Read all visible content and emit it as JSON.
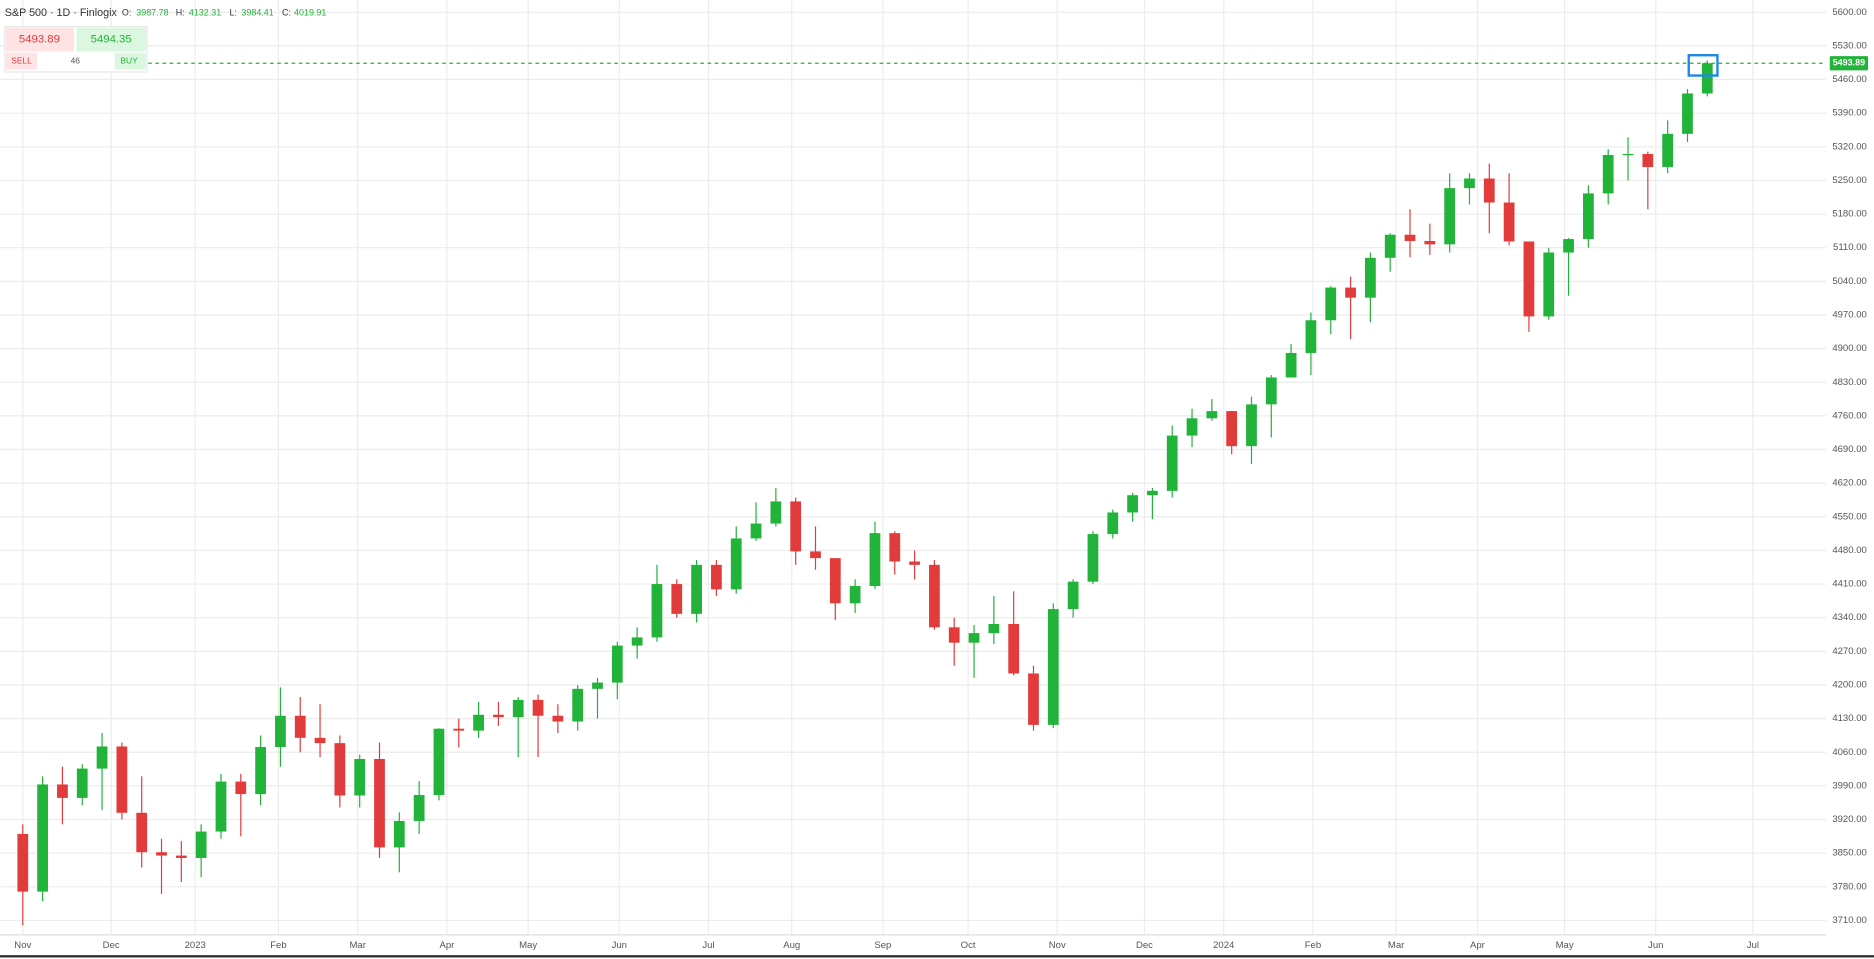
{
  "header": {
    "title": "S&P 500 · 1D · Finlogix",
    "o_label": "O:",
    "o": "3987.78",
    "h_label": "H:",
    "h": "4132.31",
    "l_label": "L:",
    "l": "3984.41",
    "c_label": "C:",
    "c": "4019.91"
  },
  "trade_panel": {
    "sell_price": "5493.89",
    "buy_price": "5494.35",
    "sell": "SELL",
    "spread": "46",
    "buy": "BUY"
  },
  "chart_data": {
    "type": "candlestick",
    "up_color": "#22b33a",
    "down_color": "#e23b3b",
    "grid": true,
    "current_price": 5493.89,
    "open": [
      3890,
      3770,
      3993,
      3965,
      4026,
      4072,
      3934,
      3852,
      3845,
      3840,
      3895,
      3999,
      3973,
      4071,
      4136,
      4090,
      4079,
      3970,
      4046,
      3862,
      3917,
      3971,
      4109,
      4105,
      4138,
      4133,
      4169,
      4136,
      4124,
      4192,
      4205,
      4282,
      4299,
      4410,
      4348,
      4450,
      4399,
      4505,
      4536,
      4582,
      4478,
      4464,
      4370,
      4406,
      4516,
      4457,
      4450,
      4320,
      4288,
      4308,
      4327,
      4224,
      4117,
      4358,
      4415,
      4514,
      4559,
      4595,
      4604,
      4719,
      4755,
      4770,
      4697,
      4784,
      4840,
      4891,
      4959,
      5027,
      5006,
      5089,
      5137,
      5124,
      5117,
      5234,
      5254,
      5204,
      5123,
      4967,
      5100,
      5128,
      5223,
      5303,
      5305,
      5278,
      5347,
      5431
    ],
    "high": [
      3910,
      4010,
      4030,
      4035,
      4100,
      4080,
      4010,
      3880,
      3875,
      3910,
      4015,
      4015,
      4095,
      4195,
      4175,
      4160,
      4095,
      4055,
      4080,
      3935,
      4000,
      4110,
      4130,
      4165,
      4165,
      4175,
      4180,
      4160,
      4200,
      4215,
      4290,
      4320,
      4450,
      4420,
      4460,
      4460,
      4530,
      4580,
      4610,
      4590,
      4530,
      4460,
      4420,
      4540,
      4520,
      4480,
      4460,
      4340,
      4325,
      4385,
      4395,
      4240,
      4370,
      4420,
      4520,
      4565,
      4600,
      4610,
      4740,
      4775,
      4795,
      4770,
      4800,
      4845,
      4910,
      4975,
      5030,
      5050,
      5100,
      5140,
      5190,
      5160,
      5265,
      5265,
      5285,
      5265,
      5120,
      5110,
      5130,
      5240,
      5315,
      5340,
      5310,
      5375,
      5440,
      5500
    ],
    "low": [
      3700,
      3750,
      3910,
      3950,
      3940,
      3920,
      3820,
      3765,
      3790,
      3800,
      3880,
      3885,
      3950,
      4030,
      4060,
      4050,
      3945,
      3945,
      3840,
      3810,
      3890,
      3960,
      4070,
      4090,
      4115,
      4050,
      4050,
      4100,
      4105,
      4130,
      4170,
      4255,
      4290,
      4340,
      4330,
      4385,
      4390,
      4500,
      4530,
      4450,
      4440,
      4335,
      4350,
      4400,
      4430,
      4420,
      4315,
      4240,
      4215,
      4285,
      4220,
      4105,
      4110,
      4340,
      4410,
      4505,
      4540,
      4545,
      4590,
      4695,
      4750,
      4680,
      4660,
      4715,
      4840,
      4845,
      4930,
      4920,
      4955,
      5060,
      5090,
      5095,
      5100,
      5200,
      5140,
      5115,
      4935,
      4960,
      5010,
      5110,
      5200,
      5250,
      5190,
      5265,
      5330,
      5425
    ],
    "close": [
      3770,
      3993,
      3965,
      4026,
      4072,
      3934,
      3852,
      3845,
      3840,
      3895,
      3999,
      3973,
      4071,
      4136,
      4090,
      4079,
      3970,
      4046,
      3862,
      3917,
      3971,
      4109,
      4105,
      4138,
      4133,
      4169,
      4136,
      4124,
      4192,
      4205,
      4282,
      4299,
      4410,
      4348,
      4450,
      4399,
      4505,
      4536,
      4582,
      4478,
      4464,
      4370,
      4406,
      4516,
      4457,
      4450,
      4320,
      4288,
      4308,
      4327,
      4224,
      4117,
      4358,
      4415,
      4514,
      4559,
      4595,
      4604,
      4719,
      4755,
      4770,
      4697,
      4784,
      4840,
      4891,
      4959,
      5027,
      5006,
      5089,
      5137,
      5124,
      5117,
      5234,
      5254,
      5204,
      5123,
      4967,
      5100,
      5128,
      5223,
      5303,
      5305,
      5278,
      5347,
      5431,
      5494
    ],
    "xlim": [
      -1.15,
      91
    ],
    "xticks": [
      {
        "value": 0,
        "label": "Nov"
      },
      {
        "value": 4.46,
        "label": "Dec"
      },
      {
        "value": 8.7,
        "label": "2023"
      },
      {
        "value": 12.9,
        "label": "Feb"
      },
      {
        "value": 16.9,
        "label": "Mar"
      },
      {
        "value": 21.4,
        "label": "Apr"
      },
      {
        "value": 25.5,
        "label": "May"
      },
      {
        "value": 30.1,
        "label": "Jun"
      },
      {
        "value": 34.6,
        "label": "Jul"
      },
      {
        "value": 38.8,
        "label": "Aug"
      },
      {
        "value": 43.4,
        "label": "Sep"
      },
      {
        "value": 47.7,
        "label": "Oct"
      },
      {
        "value": 52.2,
        "label": "Nov"
      },
      {
        "value": 56.6,
        "label": "Dec"
      },
      {
        "value": 60.6,
        "label": "2024"
      },
      {
        "value": 65.1,
        "label": "Feb"
      },
      {
        "value": 69.3,
        "label": "Mar"
      },
      {
        "value": 73.4,
        "label": "Apr"
      },
      {
        "value": 77.8,
        "label": "May"
      },
      {
        "value": 82.4,
        "label": "Jun"
      },
      {
        "value": 87.3,
        "label": "Jul"
      }
    ],
    "ylim": [
      3680,
      5625
    ],
    "yticks": [
      {
        "value": 5600,
        "label": "5600.00"
      },
      {
        "value": 5530,
        "label": "5530.00"
      },
      {
        "value": 5460,
        "label": "5460.00"
      },
      {
        "value": 5390,
        "label": "5390.00"
      },
      {
        "value": 5320,
        "label": "5320.00"
      },
      {
        "value": 5250,
        "label": "5250.00"
      },
      {
        "value": 5180,
        "label": "5180.00"
      },
      {
        "value": 5110,
        "label": "5110.00"
      },
      {
        "value": 5040,
        "label": "5040.00"
      },
      {
        "value": 4970,
        "label": "4970.00"
      },
      {
        "value": 4900,
        "label": "4900.00"
      },
      {
        "value": 4830,
        "label": "4830.00"
      },
      {
        "value": 4760,
        "label": "4760.00"
      },
      {
        "value": 4690,
        "label": "4690.00"
      },
      {
        "value": 4620,
        "label": "4620.00"
      },
      {
        "value": 4550,
        "label": "4550.00"
      },
      {
        "value": 4480,
        "label": "4480.00"
      },
      {
        "value": 4410,
        "label": "4410.00"
      },
      {
        "value": 4340,
        "label": "4340.00"
      },
      {
        "value": 4270,
        "label": "4270.00"
      },
      {
        "value": 4200,
        "label": "4200.00"
      },
      {
        "value": 4130,
        "label": "4130.00"
      },
      {
        "value": 4060,
        "label": "4060.00"
      },
      {
        "value": 3990,
        "label": "3990.00"
      },
      {
        "value": 3920,
        "label": "3920.00"
      },
      {
        "value": 3850,
        "label": "3850.00"
      },
      {
        "value": 3780,
        "label": "3780.00"
      },
      {
        "value": 3710,
        "label": "3710.00"
      }
    ]
  }
}
